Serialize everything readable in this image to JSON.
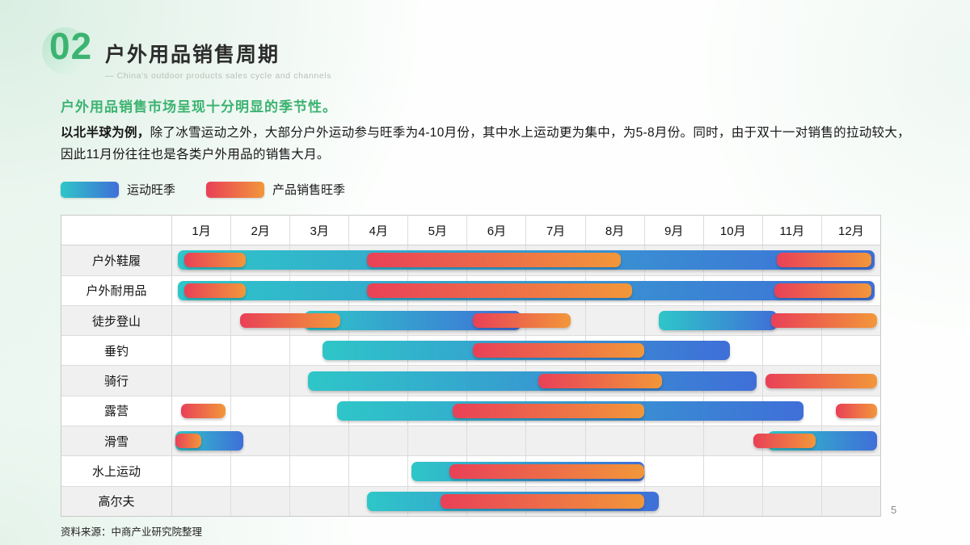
{
  "slide": {
    "number_badge": "02",
    "title": "户外用品销售周期",
    "subtitle": "— China's outdoor products sales cycle and channels",
    "highlight": "户外用品销售市场呈现十分明显的季节性。",
    "body_bold": "以北半球为例，",
    "body_rest": "除了冰雪运动之外，大部分户外运动参与旺季为4-10月份，其中水上运动更为集中，为5-8月份。同时，由于双十一对销售的拉动较大，因此11月份往往也是各类户外用品的销售大月。",
    "source": "资料来源：中商产业研究院整理",
    "page_number": "5"
  },
  "legend": [
    {
      "type": "sport",
      "label": "运动旺季"
    },
    {
      "type": "sales",
      "label": "产品销售旺季"
    }
  ],
  "colors": {
    "accent_green": "#3cb371",
    "sport_gradient_start": "#2ec6c8",
    "sport_gradient_end": "#3f6fd8",
    "sales_gradient_start": "#e94057",
    "sales_gradient_end": "#f2973a"
  },
  "chart_data": {
    "type": "gantt",
    "x_axis": "month",
    "x_range": [
      1,
      13
    ],
    "months": [
      "1月",
      "2月",
      "3月",
      "4月",
      "5月",
      "6月",
      "7月",
      "8月",
      "9月",
      "10月",
      "11月",
      "12月"
    ],
    "series_legend": [
      "运动旺季",
      "产品销售旺季"
    ],
    "rows": [
      {
        "label": "户外鞋履",
        "sport": [
          [
            1.1,
            12.9
          ]
        ],
        "sales": [
          [
            1.2,
            2.25
          ],
          [
            4.3,
            8.6
          ],
          [
            11.25,
            12.85
          ]
        ]
      },
      {
        "label": "户外耐用品",
        "sport": [
          [
            1.1,
            12.9
          ]
        ],
        "sales": [
          [
            1.2,
            2.25
          ],
          [
            4.3,
            8.8
          ],
          [
            11.2,
            12.85
          ]
        ]
      },
      {
        "label": "徒步登山",
        "sport": [
          [
            3.25,
            6.9
          ],
          [
            9.25,
            11.25
          ]
        ],
        "sales": [
          [
            2.15,
            3.85
          ],
          [
            6.1,
            7.75
          ],
          [
            11.15,
            12.95
          ]
        ]
      },
      {
        "label": "垂钓",
        "sport": [
          [
            3.55,
            10.45
          ]
        ],
        "sales": [
          [
            6.1,
            9.0
          ]
        ]
      },
      {
        "label": "骑行",
        "sport": [
          [
            3.3,
            10.9
          ]
        ],
        "sales": [
          [
            7.2,
            9.3
          ],
          [
            11.05,
            12.95
          ]
        ]
      },
      {
        "label": "露营",
        "sport": [
          [
            3.8,
            11.7
          ]
        ],
        "sales": [
          [
            1.15,
            1.9
          ],
          [
            5.75,
            9.0
          ],
          [
            12.25,
            12.95
          ]
        ]
      },
      {
        "label": "滑雪",
        "sport": [
          [
            1.05,
            2.2
          ],
          [
            11.1,
            12.95
          ]
        ],
        "sales": [
          [
            1.05,
            1.5
          ],
          [
            10.85,
            11.9
          ]
        ]
      },
      {
        "label": "水上运动",
        "sport": [
          [
            5.05,
            9.0
          ]
        ],
        "sales": [
          [
            5.7,
            9.0
          ]
        ]
      },
      {
        "label": "高尔夫",
        "sport": [
          [
            4.3,
            9.25
          ]
        ],
        "sales": [
          [
            5.55,
            9.0
          ]
        ]
      }
    ]
  }
}
